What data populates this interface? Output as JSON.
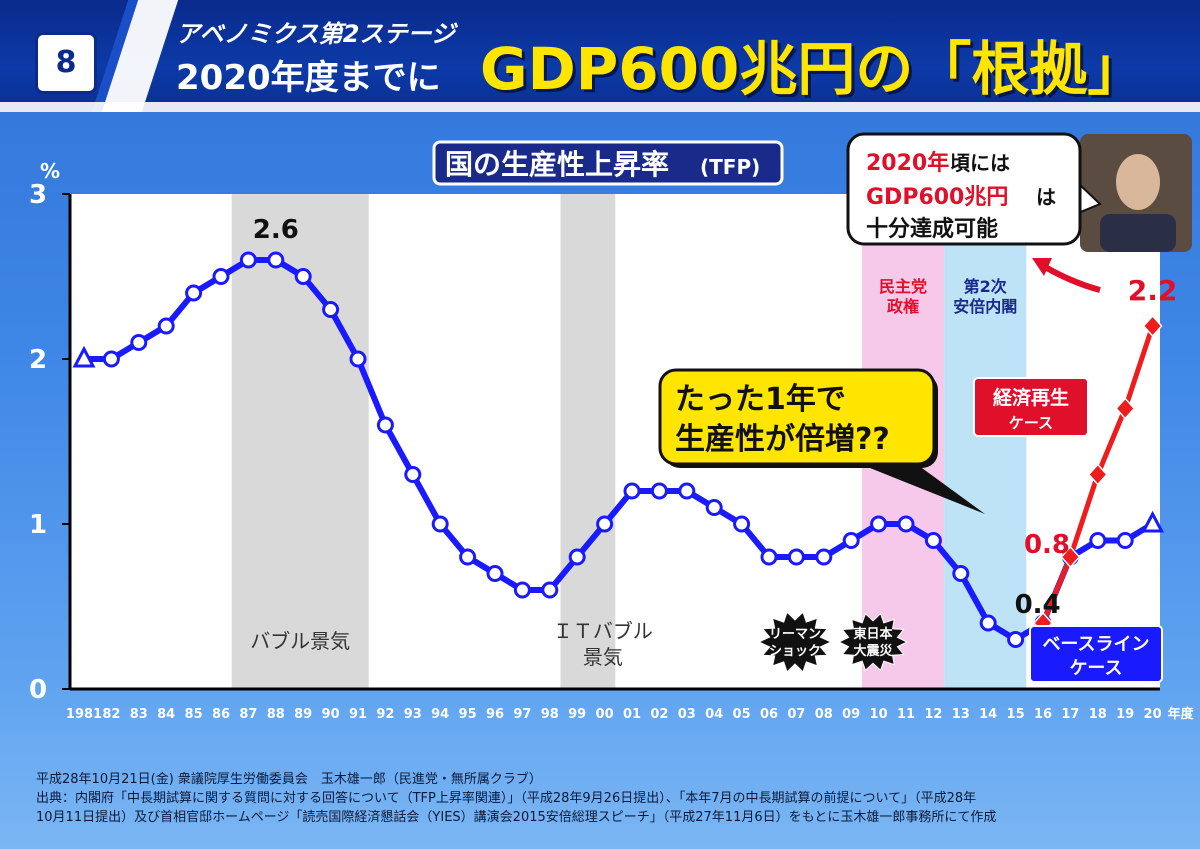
{
  "header": {
    "slide_number": "8",
    "subtitle_line1": "アベノミクス第2ステージ",
    "subtitle_line2": "2020年度までに",
    "title": "GDP600兆円の「根拠」"
  },
  "chart_data": {
    "type": "line",
    "title": "国の生産性上昇率",
    "title_suffix": "(TFP)",
    "y_unit": "%",
    "ylim": [
      0,
      3
    ],
    "yticks": [
      "0",
      "1",
      "2",
      "3"
    ],
    "x_labels": [
      "1981",
      "82",
      "83",
      "84",
      "85",
      "86",
      "87",
      "88",
      "89",
      "90",
      "91",
      "92",
      "93",
      "94",
      "95",
      "96",
      "97",
      "98",
      "99",
      "00",
      "01",
      "02",
      "03",
      "04",
      "05",
      "06",
      "07",
      "08",
      "09",
      "10",
      "11",
      "12",
      "13",
      "14",
      "15",
      "16",
      "17",
      "18",
      "19",
      "20"
    ],
    "x_suffix": "年度",
    "series": [
      {
        "name": "ベースラインケース",
        "color": "#1a1aff",
        "values": [
          2.0,
          2.0,
          2.1,
          2.2,
          2.4,
          2.5,
          2.6,
          2.6,
          2.5,
          2.3,
          2.0,
          1.6,
          1.3,
          1.0,
          0.8,
          0.7,
          0.6,
          0.6,
          0.8,
          1.0,
          1.2,
          1.2,
          1.2,
          1.1,
          1.0,
          0.8,
          0.8,
          0.8,
          0.9,
          1.0,
          1.0,
          0.9,
          0.7,
          0.4,
          0.3,
          0.4,
          0.8,
          0.9,
          0.9,
          1.0
        ]
      },
      {
        "name": "経済再生ケース",
        "color": "#ee1c1c",
        "start_index": 35,
        "values": [
          0.4,
          0.8,
          1.3,
          1.7,
          2.2
        ]
      }
    ],
    "shaded_periods": [
      {
        "start": "86",
        "end": "91",
        "color": "#d9d9d9",
        "label": "バブル景気"
      },
      {
        "start": "98",
        "end": "00",
        "color": "#d9d9d9",
        "label": "ＩＴバブル景気"
      },
      {
        "start": "09",
        "end": "12",
        "color": "#f6c9ea",
        "label": "民主党政権"
      },
      {
        "start": "12",
        "end": "15",
        "color": "#bfe3f6",
        "label": "第2次安倍内閣"
      }
    ],
    "value_labels": {
      "peak": "2.6",
      "low": "0.4",
      "red_start": "0.8",
      "red_end": "2.2"
    },
    "events": {
      "lehman": "リーマンショック",
      "earthquake": "東日本大震災"
    },
    "callouts": {
      "question_line1": "たった1年で",
      "question_line2": "生産性が倍増??",
      "quote_part1": "2020年",
      "quote_part2": "頃には",
      "quote_part3": "GDP600兆円",
      "quote_part4": "は",
      "quote_line3": "十分達成可能"
    },
    "series_labels": {
      "red_line1": "経済再生",
      "red_line2": "ケース",
      "blue_line1": "ベースライン",
      "blue_line2": "ケース"
    },
    "grid": false
  },
  "footer": {
    "line1": "平成28年10月21日(金) 衆議院厚生労働委員会　玉木雄一郎（民進党・無所属クラブ）",
    "line2": "出典：内閣府「中長期試算に関する質問に対する回答について（TFP上昇率関連）」（平成28年9月26日提出）、「本年7月の中長期試算の前提について」（平成28年",
    "line3": "10月11日提出）及び首相官邸ホームページ「読売国際経済懇話会（YIES）講演会2015安倍総理スピーチ」（平成27年11月6日）をもとに玉木雄一郎事務所にて作成"
  }
}
